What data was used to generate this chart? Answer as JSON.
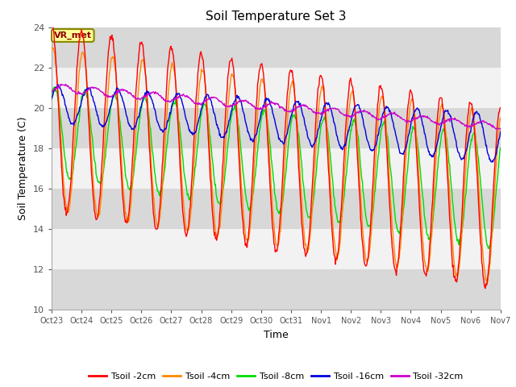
{
  "title": "Soil Temperature Set 3",
  "xlabel": "Time",
  "ylabel": "Soil Temperature (C)",
  "ylim": [
    10,
    24
  ],
  "xlim": [
    0,
    15
  ],
  "background_color": "#ffffff",
  "legend_entries": [
    "Tsoil -2cm",
    "Tsoil -4cm",
    "Tsoil -8cm",
    "Tsoil -16cm",
    "Tsoil -32cm"
  ],
  "line_colors": [
    "#ff0000",
    "#ff8800",
    "#00dd00",
    "#0000dd",
    "#cc00cc"
  ],
  "vr_met_label": "VR_met",
  "x_tick_labels": [
    "Oct 23",
    "Oct 24",
    "Oct 25",
    "Oct 26",
    "Oct 27",
    "Oct 28",
    "Oct 29",
    "Oct 30",
    "Oct 31",
    "Nov 1",
    "Nov 2",
    "Nov 3",
    "Nov 4",
    "Nov 5",
    "Nov 6",
    "Nov 7"
  ],
  "gray_band_color": "#d8d8d8",
  "white_band_color": "#f2f2f2",
  "ytick_values": [
    10,
    12,
    14,
    16,
    18,
    20,
    22,
    24
  ]
}
